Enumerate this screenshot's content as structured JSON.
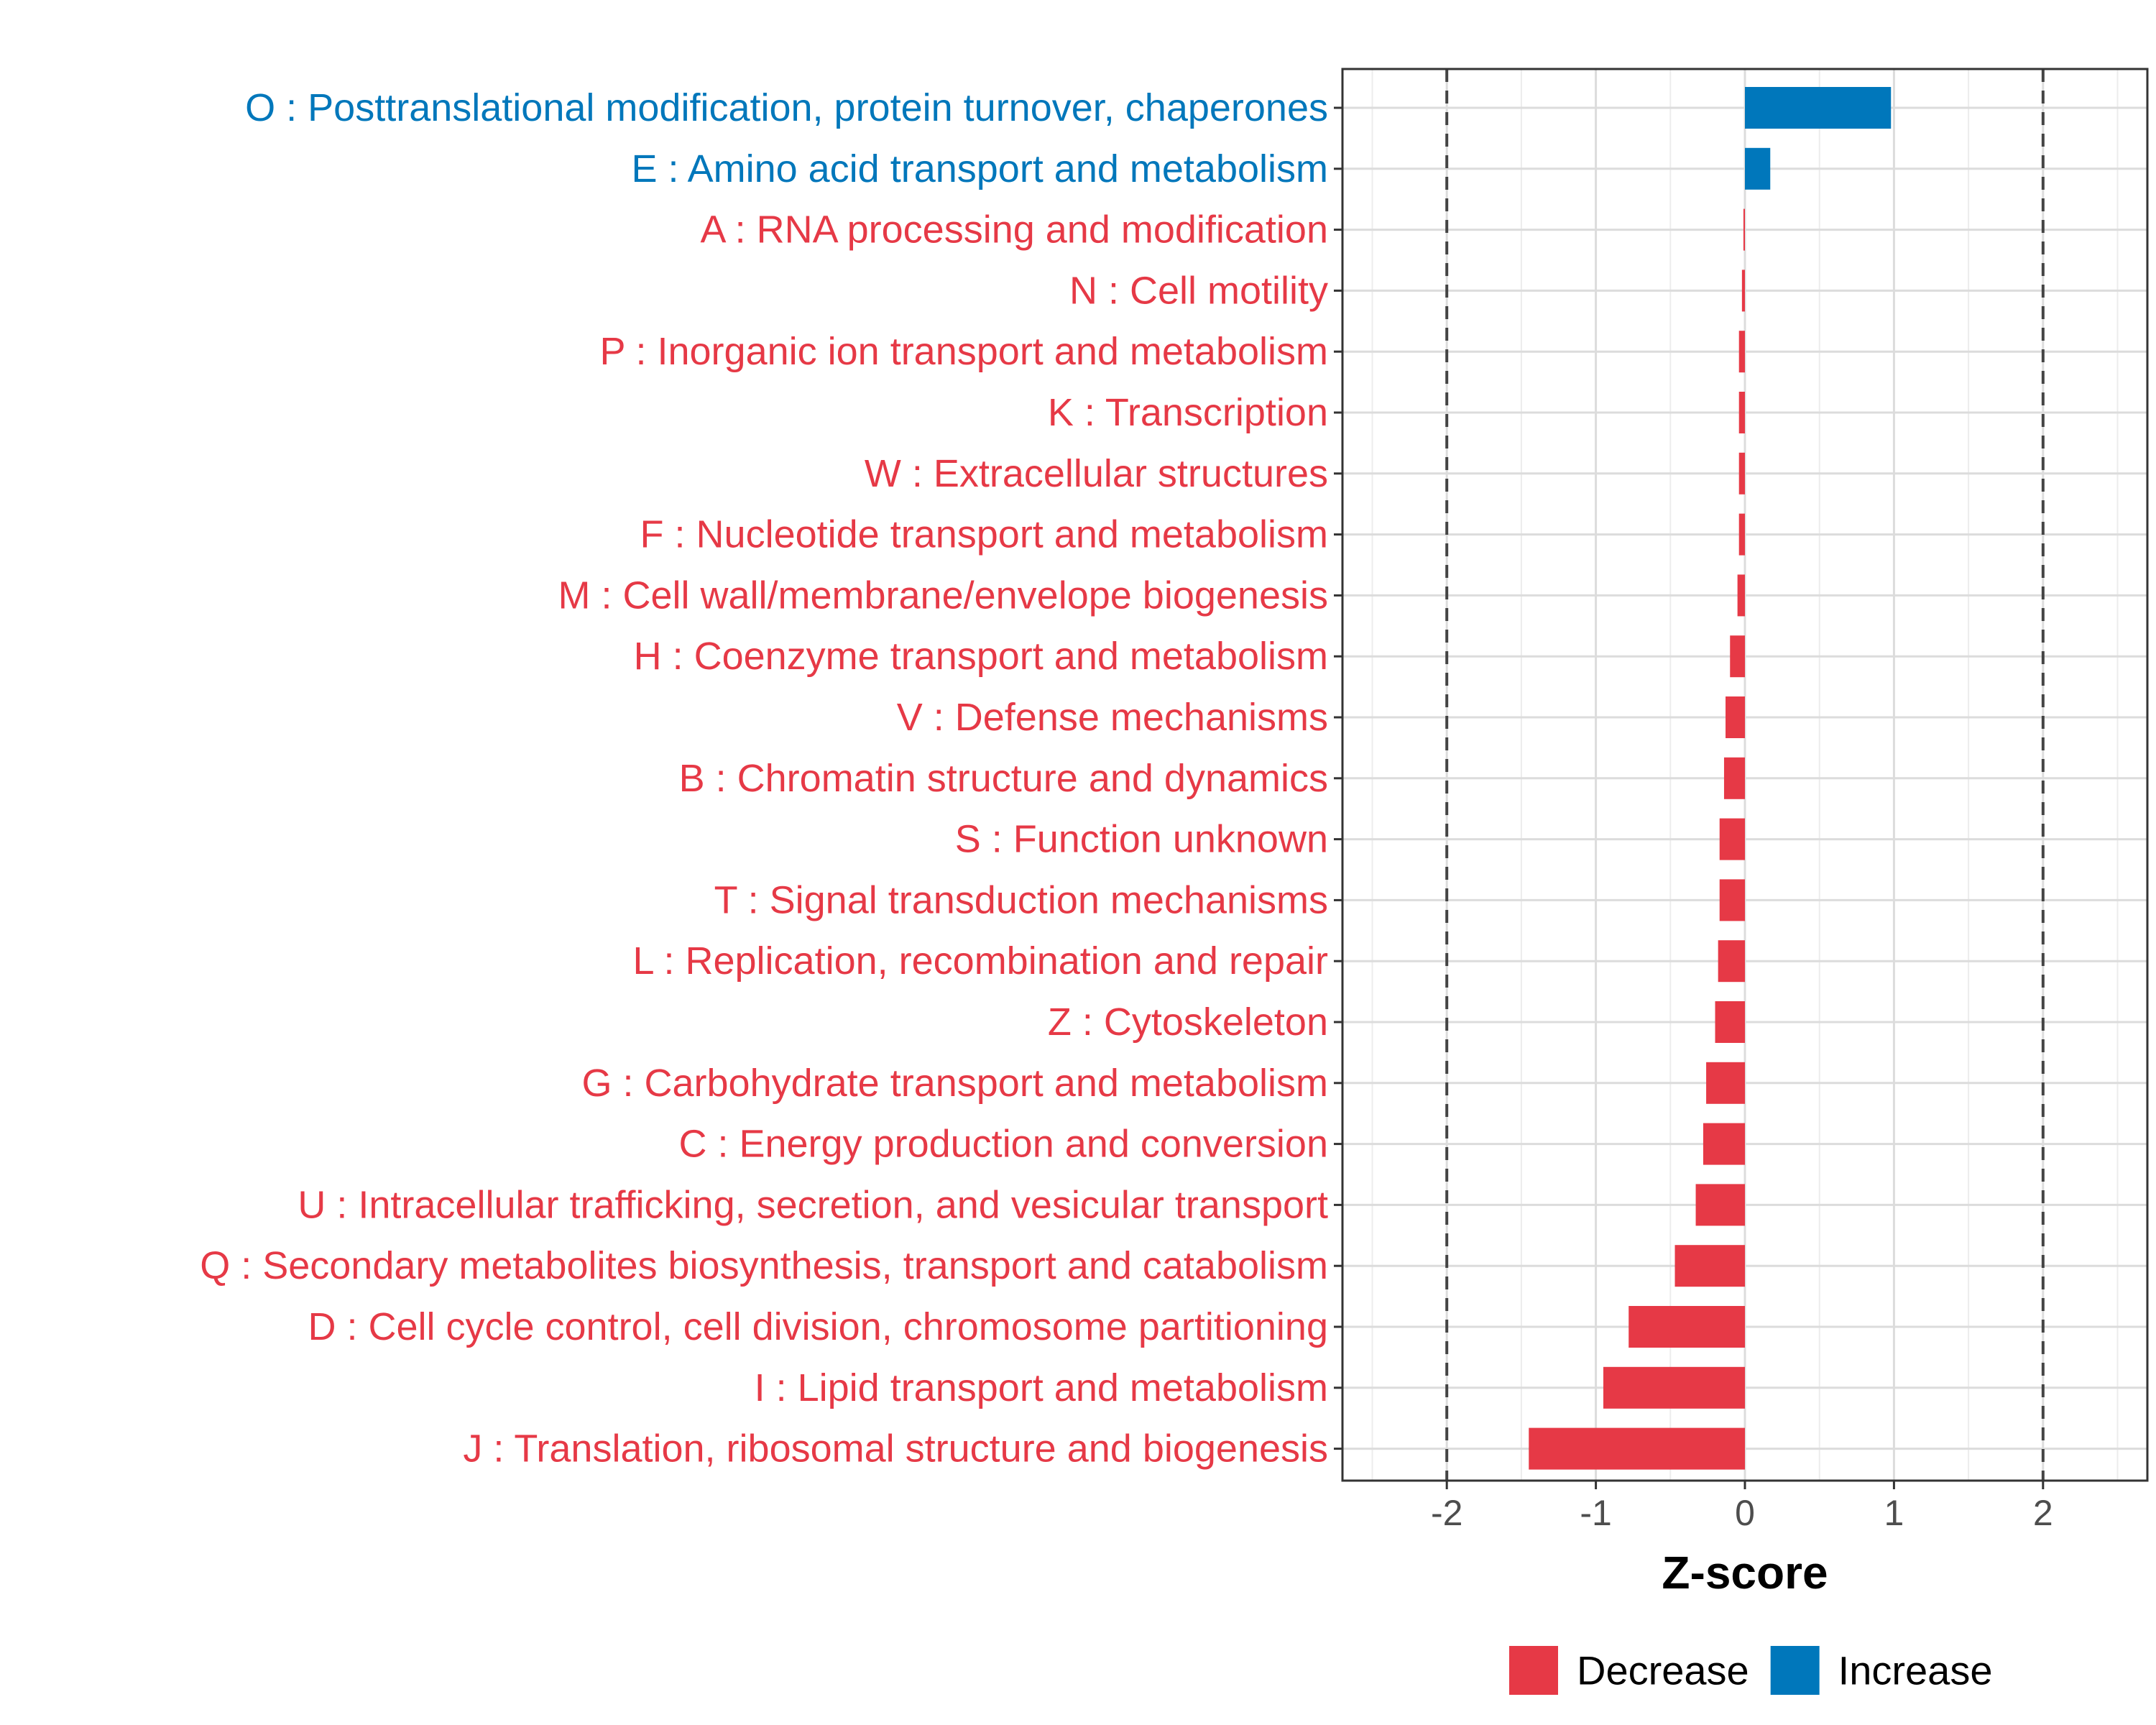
{
  "chart_data": {
    "type": "bar",
    "orientation": "horizontal",
    "categories": [
      "O : Posttranslational modification, protein turnover, chaperones",
      "E : Amino acid transport and metabolism",
      "A : RNA processing and modification",
      "N : Cell motility",
      "P : Inorganic ion transport and metabolism",
      "K : Transcription",
      "W : Extracellular structures",
      "F : Nucleotide transport and metabolism",
      "M : Cell wall/membrane/envelope biogenesis",
      "H : Coenzyme transport and metabolism",
      "V : Defense mechanisms",
      "B : Chromatin structure and dynamics",
      "S : Function unknown",
      "T : Signal transduction mechanisms",
      "L : Replication, recombination and repair",
      "Z : Cytoskeleton",
      "G : Carbohydrate transport and metabolism",
      "C : Energy production and conversion",
      "U : Intracellular trafficking, secretion, and vesicular transport",
      "Q : Secondary metabolites biosynthesis, transport and catabolism",
      "D : Cell cycle control, cell division, chromosome partitioning",
      "I : Lipid transport and metabolism",
      "J : Translation, ribosomal structure and biogenesis"
    ],
    "values": [
      0.98,
      0.17,
      -0.01,
      -0.02,
      -0.04,
      -0.04,
      -0.04,
      -0.04,
      -0.05,
      -0.1,
      -0.13,
      -0.14,
      -0.17,
      -0.17,
      -0.18,
      -0.2,
      -0.26,
      -0.28,
      -0.33,
      -0.47,
      -0.78,
      -0.95,
      -1.45
    ],
    "groups": [
      "Increase",
      "Increase",
      "Decrease",
      "Decrease",
      "Decrease",
      "Decrease",
      "Decrease",
      "Decrease",
      "Decrease",
      "Decrease",
      "Decrease",
      "Decrease",
      "Decrease",
      "Decrease",
      "Decrease",
      "Decrease",
      "Decrease",
      "Decrease",
      "Decrease",
      "Decrease",
      "Decrease",
      "Decrease",
      "Decrease"
    ],
    "xlim": [
      -2.7,
      2.7
    ],
    "xticks": [
      -2,
      -1,
      0,
      1,
      2
    ],
    "xtick_labels": [
      "-2",
      "-1",
      "0",
      "1",
      "2"
    ],
    "reference_lines": [
      -2,
      2
    ],
    "xlabel": "Z-score",
    "ylabel": "",
    "title": "",
    "grid": true,
    "legend": {
      "position": "bottom",
      "entries": [
        {
          "label": "Decrease",
          "color": "#E63946"
        },
        {
          "label": "Increase",
          "color": "#0077BB"
        }
      ]
    },
    "colors": {
      "Decrease": "#E63946",
      "Increase": "#0077BB"
    }
  }
}
